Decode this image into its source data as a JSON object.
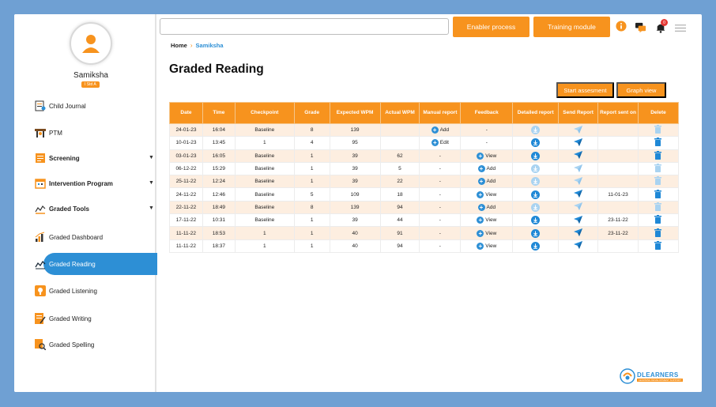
{
  "user": {
    "name": "Samiksha",
    "class_label": "I Std A"
  },
  "sidebar": {
    "items": [
      {
        "label": "Child Journal",
        "icon": "journal-icon"
      },
      {
        "label": "PTM",
        "icon": "ptm-icon"
      },
      {
        "label": "Screening",
        "icon": "screening-icon"
      },
      {
        "label": "Intervention Program",
        "icon": "calendar-icon"
      },
      {
        "label": "Graded Tools",
        "icon": "chart-line-icon"
      },
      {
        "label": "Graded Dashboard",
        "icon": "bar-chart-icon"
      },
      {
        "label": "Graded Reading",
        "icon": "reading-chart-icon"
      },
      {
        "label": "Graded Listening",
        "icon": "listening-icon"
      },
      {
        "label": "Graded Writing",
        "icon": "writing-icon"
      },
      {
        "label": "Graded Spelling",
        "icon": "spelling-icon"
      }
    ],
    "active": "Graded Reading"
  },
  "topbar": {
    "search_placeholder": "",
    "enabler_label": "Enabler process",
    "training_label": "Training module",
    "notification_count": "0"
  },
  "breadcrumb": {
    "home": "Home",
    "current": "Samiksha"
  },
  "page_title": "Graded Reading",
  "actions": {
    "start_label": "Start assesment",
    "graph_label": "Graph view"
  },
  "table": {
    "headers": [
      "Date",
      "Time",
      "Checkpoint",
      "Grade",
      "Expected WPM",
      "Actual WPM",
      "Manual report",
      "Feedback",
      "Detailed report",
      "Send Report",
      "Report sent on",
      "Delete"
    ],
    "rows": [
      {
        "date": "24-01-23",
        "time": "16:04",
        "checkpoint": "Baseline",
        "grade": "8",
        "expected": "139",
        "actual": "",
        "manual": "Add",
        "feedback": "-",
        "enabled": false,
        "sent_on": ""
      },
      {
        "date": "10-01-23",
        "time": "13:45",
        "checkpoint": "1",
        "grade": "4",
        "expected": "95",
        "actual": "",
        "manual": "Edit",
        "feedback": "-",
        "enabled": true,
        "sent_on": ""
      },
      {
        "date": "03-01-23",
        "time": "16:05",
        "checkpoint": "Baseline",
        "grade": "1",
        "expected": "39",
        "actual": "62",
        "manual": "-",
        "feedback": "View",
        "enabled": true,
        "sent_on": ""
      },
      {
        "date": "06-12-22",
        "time": "15:29",
        "checkpoint": "Baseline",
        "grade": "1",
        "expected": "39",
        "actual": "5",
        "manual": "-",
        "feedback": "Add",
        "enabled": false,
        "sent_on": ""
      },
      {
        "date": "25-11-22",
        "time": "12:24",
        "checkpoint": "Baseline",
        "grade": "1",
        "expected": "39",
        "actual": "22",
        "manual": "-",
        "feedback": "Add",
        "enabled": false,
        "sent_on": ""
      },
      {
        "date": "24-11-22",
        "time": "12:46",
        "checkpoint": "Baseline",
        "grade": "5",
        "expected": "109",
        "actual": "18",
        "manual": "-",
        "feedback": "View",
        "enabled": true,
        "sent_on": "11-01-23"
      },
      {
        "date": "22-11-22",
        "time": "18:49",
        "checkpoint": "Baseline",
        "grade": "8",
        "expected": "139",
        "actual": "94",
        "manual": "-",
        "feedback": "Add",
        "enabled": false,
        "sent_on": ""
      },
      {
        "date": "17-11-22",
        "time": "10:31",
        "checkpoint": "Baseline",
        "grade": "1",
        "expected": "39",
        "actual": "44",
        "manual": "-",
        "feedback": "View",
        "enabled": true,
        "sent_on": "23-11-22"
      },
      {
        "date": "11-11-22",
        "time": "18:53",
        "checkpoint": "1",
        "grade": "1",
        "expected": "40",
        "actual": "91",
        "manual": "-",
        "feedback": "View",
        "enabled": true,
        "sent_on": "23-11-22"
      },
      {
        "date": "11-11-22",
        "time": "18:37",
        "checkpoint": "1",
        "grade": "1",
        "expected": "40",
        "actual": "94",
        "manual": "-",
        "feedback": "View",
        "enabled": true,
        "sent_on": ""
      }
    ]
  },
  "logo": {
    "brand": "DLEARNERS",
    "tagline": "LEARNING DEVELOPMENT SUPPORT"
  },
  "colors": {
    "accent": "#f7931e",
    "primary": "#2d8fd5",
    "frame": "#6fa0d3"
  }
}
